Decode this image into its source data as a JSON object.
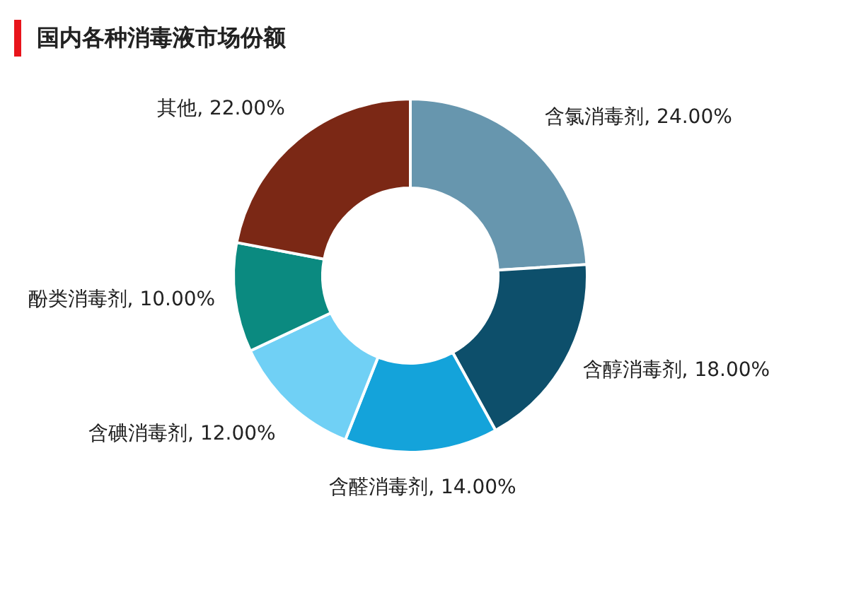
{
  "chart_data": {
    "type": "donut",
    "title": "国内各种消毒液市场份额",
    "categories": [
      "含氯消毒剂",
      "含醇消毒剂",
      "含醛消毒剂",
      "含碘消毒剂",
      "酚类消毒剂",
      "其他"
    ],
    "values": [
      24,
      18,
      14,
      12,
      10,
      22
    ],
    "value_labels": [
      "24.00%",
      "18.00%",
      "14.00%",
      "12.00%",
      "10.00%",
      "22.00%"
    ],
    "colors": [
      "#6796ae",
      "#0d4f6b",
      "#14a3da",
      "#70d0f5",
      "#0b8a80",
      "#7b2815"
    ]
  }
}
